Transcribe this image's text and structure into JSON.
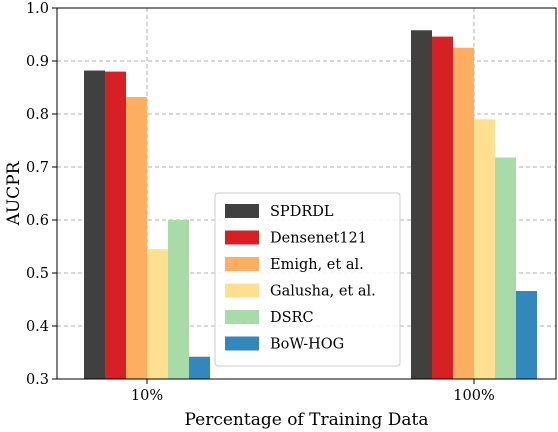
{
  "chart_data": {
    "type": "bar",
    "xlabel": "Percentage of Training Data",
    "ylabel": "AUCPR",
    "ylim": [
      0.3,
      1.0
    ],
    "yticks": [
      "0.3",
      "0.4",
      "0.5",
      "0.6",
      "0.7",
      "0.8",
      "0.9",
      "1.0"
    ],
    "categories": [
      "10%",
      "100%"
    ],
    "grid": true,
    "legend_position": "center",
    "series": [
      {
        "name": "SPDRDL",
        "color": "#404040",
        "values": [
          0.882,
          0.958
        ]
      },
      {
        "name": "Densenet121",
        "color": "#d62023",
        "values": [
          0.88,
          0.946
        ]
      },
      {
        "name": "Emigh, et al.",
        "color": "#fdae61",
        "values": [
          0.832,
          0.925
        ]
      },
      {
        "name": "Galusha, et al.",
        "color": "#fee090",
        "values": [
          0.545,
          0.79
        ]
      },
      {
        "name": "DSRC",
        "color": "#a8dba8",
        "values": [
          0.6,
          0.718
        ]
      },
      {
        "name": "BoW-HOG",
        "color": "#3288bd",
        "values": [
          0.342,
          0.466
        ]
      }
    ]
  }
}
